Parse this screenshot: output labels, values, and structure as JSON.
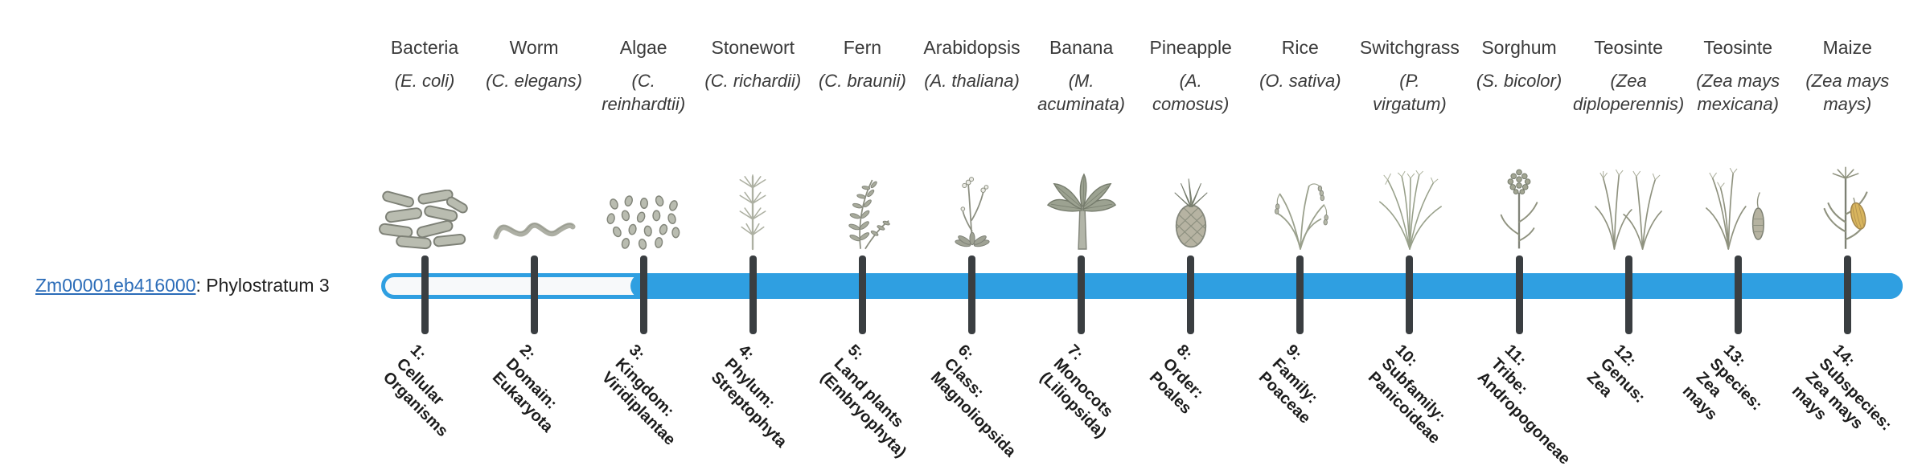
{
  "header": {
    "gene_id": "Zm00001eb416000",
    "suffix": ": Phylostratum 3"
  },
  "phylostratum": 3,
  "colors": {
    "bar_blue": "#2F9FE1",
    "bar_track": "#F7F9FA",
    "tick_dark": "#3A3E41",
    "link_blue": "#2B6CB8"
  },
  "strata": [
    {
      "num": 1,
      "organism": "Bacteria",
      "scientific": "(E. coli)",
      "icon": "bacteria-icon",
      "stage_label": "1:\nCellular\nOrganisms"
    },
    {
      "num": 2,
      "organism": "Worm",
      "scientific": "(C. elegans)",
      "icon": "worm-icon",
      "stage_label": "2:\nDomain:\nEukaryota"
    },
    {
      "num": 3,
      "organism": "Algae",
      "scientific": "(C.\nreinhardtii)",
      "icon": "algae-icon",
      "stage_label": "3:\nKingdom:\nViridiplantae"
    },
    {
      "num": 4,
      "organism": "Stonewort",
      "scientific": "(C. richardii)",
      "icon": "stonewort-icon",
      "stage_label": "4:\nPhylum:\nStreptophyta"
    },
    {
      "num": 5,
      "organism": "Fern",
      "scientific": "(C. braunii)",
      "icon": "fern-icon",
      "stage_label": "5:\nLand plants\n(Embryophyta)"
    },
    {
      "num": 6,
      "organism": "Arabidopsis",
      "scientific": "(A. thaliana)",
      "icon": "arabidopsis-icon",
      "stage_label": "6:\nClass:\nMagnoliopsida"
    },
    {
      "num": 7,
      "organism": "Banana",
      "scientific": "(M.\nacuminata)",
      "icon": "banana-icon",
      "stage_label": "7:\nMonocots\n(Liliopsida)"
    },
    {
      "num": 8,
      "organism": "Pineapple",
      "scientific": "(A.\ncomosus)",
      "icon": "pineapple-icon",
      "stage_label": "8:\nOrder:\nPoales"
    },
    {
      "num": 9,
      "organism": "Rice",
      "scientific": "(O. sativa)",
      "icon": "rice-icon",
      "stage_label": "9:\nFamily:\nPoaceae"
    },
    {
      "num": 10,
      "organism": "Switchgrass",
      "scientific": "(P.\nvirgatum)",
      "icon": "switchgrass-icon",
      "stage_label": "10:\nSubfamily:\nPanicoideae"
    },
    {
      "num": 11,
      "organism": "Sorghum",
      "scientific": "(S. bicolor)",
      "icon": "sorghum-icon",
      "stage_label": "11:\nTribe:\nAndropogoneae"
    },
    {
      "num": 12,
      "organism": "Teosinte",
      "scientific": "(Zea\ndiploperennis)",
      "icon": "teosinte-diploperennis-icon",
      "stage_label": "12:\nGenus:\nZea"
    },
    {
      "num": 13,
      "organism": "Teosinte",
      "scientific": "(Zea mays\nmexicana)",
      "icon": "teosinte-mexicana-icon",
      "stage_label": "13:\nSpecies:\nZea\nmays"
    },
    {
      "num": 14,
      "organism": "Maize",
      "scientific": "(Zea mays\nmays)",
      "icon": "maize-icon",
      "stage_label": "14:\nSubspecies:\nZea mays\nmays"
    }
  ]
}
